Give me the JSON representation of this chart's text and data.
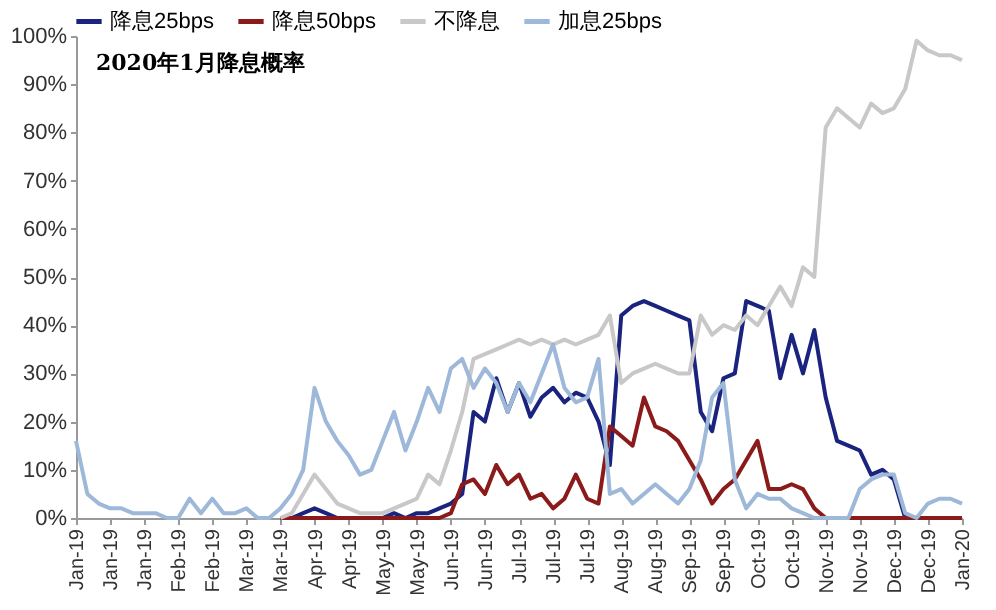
{
  "chart_data": {
    "type": "line",
    "title": "2020年1月降息概率",
    "categories": [
      "Jan-19",
      null,
      null,
      "Jan-19",
      null,
      null,
      "Jan-19",
      null,
      null,
      "Feb-19",
      null,
      null,
      "Feb-19",
      null,
      null,
      "Mar-19",
      null,
      null,
      "Mar-19",
      null,
      null,
      "Apr-19",
      null,
      null,
      "Apr-19",
      null,
      null,
      "May-19",
      null,
      null,
      "May-19",
      null,
      null,
      "Jun-19",
      null,
      null,
      "Jun-19",
      null,
      null,
      "Jul-19",
      null,
      null,
      "Jul-19",
      null,
      null,
      "Jul-19",
      null,
      null,
      "Aug-19",
      null,
      null,
      "Aug-19",
      null,
      null,
      "Sep-19",
      null,
      null,
      "Sep-19",
      null,
      null,
      "Oct-19",
      null,
      null,
      "Oct-19",
      null,
      null,
      "Nov-19",
      null,
      null,
      "Nov-19",
      null,
      null,
      "Dec-19",
      null,
      null,
      "Dec-19",
      null,
      null,
      "Jan-20"
    ],
    "series": [
      {
        "name": "降息25bps",
        "color": "#1a237e",
        "values": [
          null,
          null,
          null,
          null,
          null,
          null,
          null,
          null,
          null,
          null,
          null,
          null,
          null,
          null,
          null,
          null,
          null,
          null,
          0,
          0,
          1,
          2,
          1,
          0,
          0,
          0,
          0,
          0,
          1,
          0,
          1,
          1,
          2,
          3,
          5,
          22,
          20,
          29,
          22,
          28,
          21,
          25,
          27,
          24,
          26,
          25,
          20,
          11,
          42,
          44,
          45,
          44,
          43,
          42,
          41,
          22,
          18,
          29,
          30,
          45,
          44,
          43,
          29,
          38,
          30,
          39,
          25,
          16,
          15,
          14,
          9,
          10,
          8,
          0,
          null,
          null,
          null,
          null,
          null
        ]
      },
      {
        "name": "降息50bps",
        "color": "#8b1a1a",
        "values": [
          null,
          null,
          null,
          null,
          null,
          null,
          null,
          null,
          null,
          null,
          null,
          null,
          null,
          null,
          null,
          null,
          null,
          null,
          0,
          0,
          0,
          0,
          0,
          0,
          0,
          0,
          0,
          0,
          0,
          0,
          0,
          0,
          0,
          1,
          7,
          8,
          5,
          11,
          7,
          9,
          4,
          5,
          2,
          4,
          9,
          4,
          3,
          19,
          17,
          15,
          25,
          19,
          18,
          16,
          12,
          8,
          3,
          6,
          8,
          12,
          16,
          6,
          6,
          7,
          6,
          2,
          0,
          0,
          0,
          0,
          0,
          0,
          0,
          0,
          0,
          0,
          0,
          0,
          0
        ]
      },
      {
        "name": "不降息",
        "color": "#c8c8c8",
        "values": [
          null,
          null,
          null,
          null,
          null,
          null,
          null,
          null,
          null,
          null,
          null,
          null,
          null,
          null,
          null,
          null,
          null,
          null,
          0,
          1,
          5,
          9,
          6,
          3,
          2,
          1,
          1,
          1,
          2,
          3,
          4,
          9,
          7,
          14,
          22,
          33,
          34,
          35,
          36,
          37,
          36,
          37,
          36,
          37,
          36,
          37,
          38,
          42,
          28,
          30,
          31,
          32,
          31,
          30,
          30,
          42,
          38,
          40,
          39,
          42,
          40,
          44,
          48,
          44,
          52,
          50,
          81,
          85,
          83,
          81,
          86,
          84,
          85,
          89,
          99,
          97,
          96,
          96,
          95
        ]
      },
      {
        "name": "加息25bps",
        "color": "#9db8d8",
        "values": [
          16,
          5,
          3,
          2,
          2,
          1,
          1,
          1,
          0,
          0,
          4,
          1,
          4,
          1,
          1,
          2,
          0,
          0,
          2,
          5,
          10,
          27,
          20,
          16,
          13,
          9,
          10,
          16,
          22,
          14,
          20,
          27,
          22,
          31,
          33,
          27,
          31,
          28,
          22,
          28,
          24,
          30,
          36,
          27,
          24,
          25,
          33,
          5,
          6,
          3,
          5,
          7,
          5,
          3,
          6,
          12,
          25,
          28,
          8,
          2,
          5,
          4,
          4,
          2,
          1,
          0,
          0,
          0,
          0,
          6,
          8,
          9,
          9,
          1,
          0,
          3,
          4,
          4,
          3
        ]
      }
    ],
    "ylim": [
      0,
      100
    ],
    "yticks": [
      {
        "value": 0,
        "label": "0%"
      },
      {
        "value": 10,
        "label": "10%"
      },
      {
        "value": 20,
        "label": "20%"
      },
      {
        "value": 30,
        "label": "30%"
      },
      {
        "value": 40,
        "label": "40%"
      },
      {
        "value": 50,
        "label": "50%"
      },
      {
        "value": 60,
        "label": "60%"
      },
      {
        "value": 70,
        "label": "70%"
      },
      {
        "value": 80,
        "label": "80%"
      },
      {
        "value": 90,
        "label": "90%"
      },
      {
        "value": 100,
        "label": "100%"
      }
    ],
    "legend": "top",
    "grid": false,
    "marker": "none",
    "line_style": "solid"
  }
}
